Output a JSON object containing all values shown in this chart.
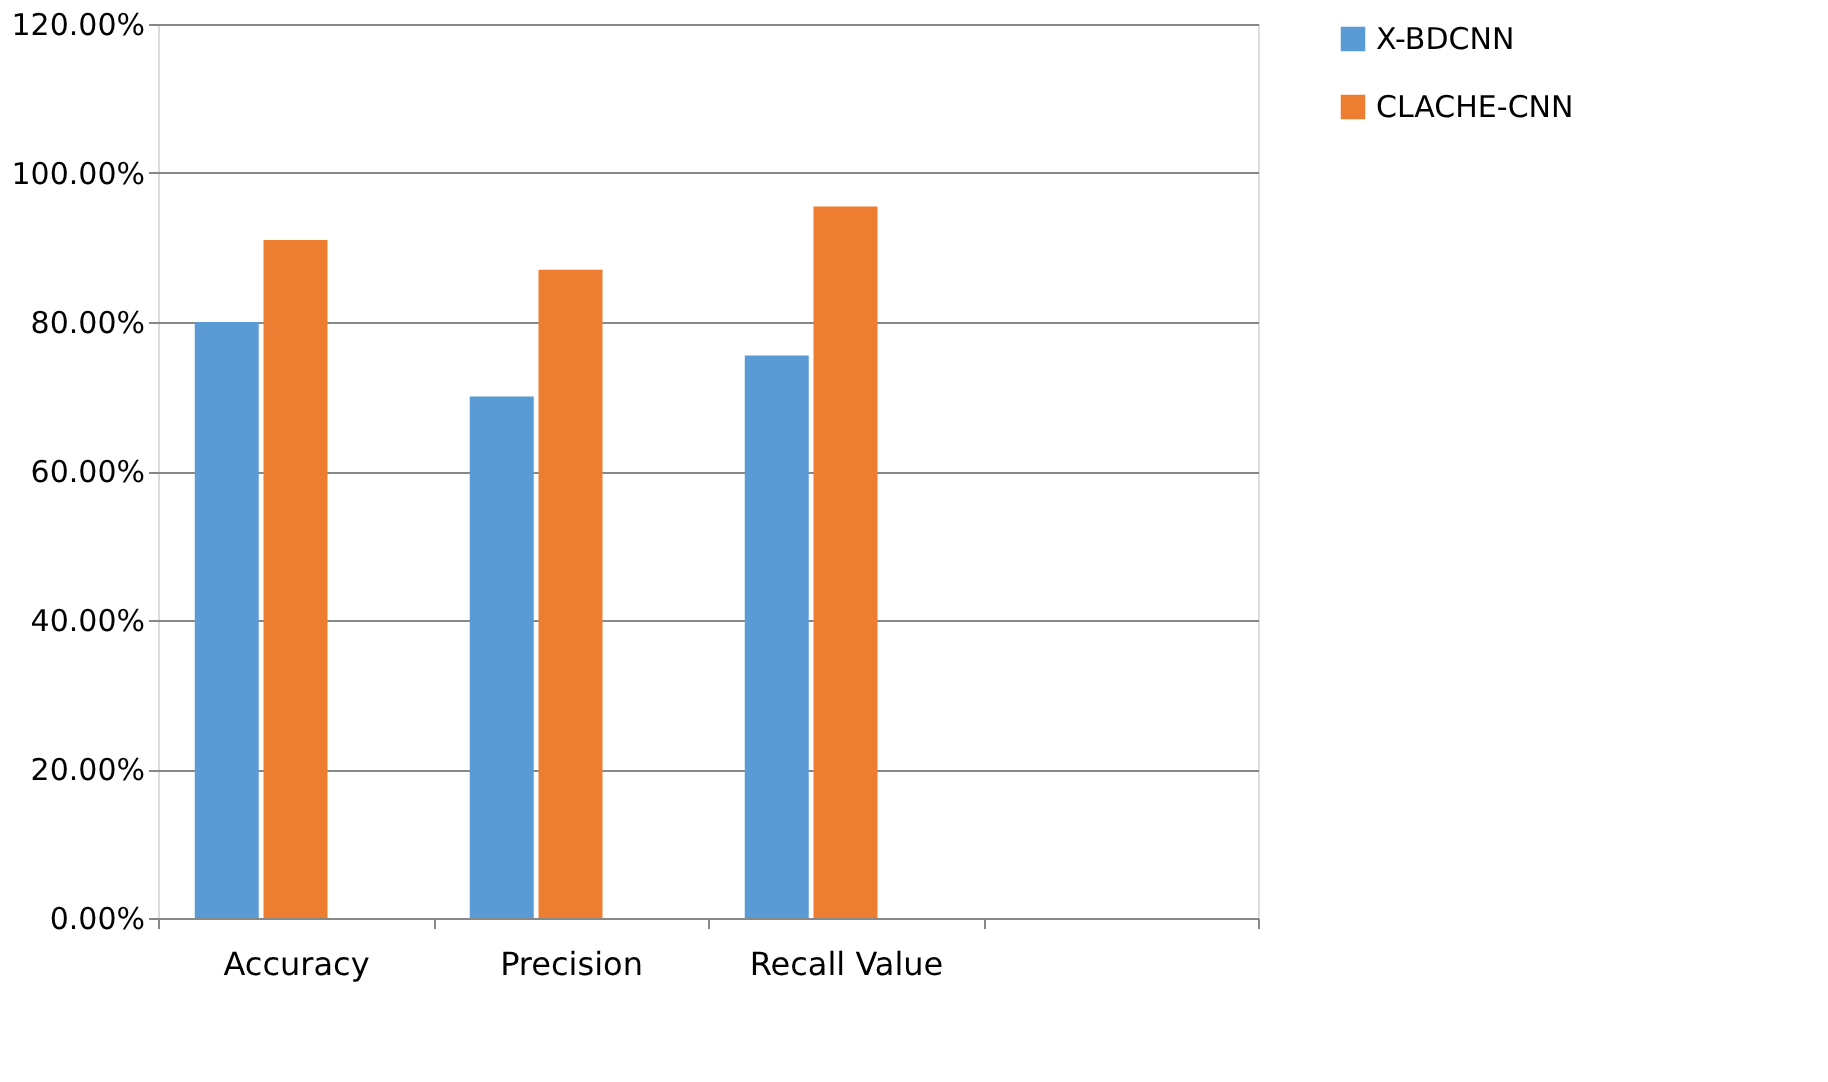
{
  "chart_data": {
    "type": "bar",
    "categories": [
      "Accuracy",
      "Precision",
      "Recall Value",
      null
    ],
    "series": [
      {
        "name": "X-BDCNN",
        "color": "#5b9bd5",
        "values": [
          80,
          70,
          75.5,
          null
        ]
      },
      {
        "name": "CLACHE-CNN",
        "color": "#ed7d31",
        "values": [
          91,
          87,
          95.5,
          null
        ]
      },
      {
        "color": "#a5a5a5",
        "values": [
          null,
          null,
          null,
          null
        ]
      }
    ],
    "ylim": [
      0,
      120
    ],
    "yticks": [
      {
        "value": 0,
        "label": "0.00%"
      },
      {
        "value": 20,
        "label": "20.00%"
      },
      {
        "value": 40,
        "label": "40.00%"
      },
      {
        "value": 60,
        "label": "60.00%"
      },
      {
        "value": 80,
        "label": "80.00%"
      },
      {
        "value": 100,
        "label": "100.00%"
      },
      {
        "value": 120,
        "label": "120.00%"
      }
    ],
    "grid": "y",
    "legend": "right"
  }
}
